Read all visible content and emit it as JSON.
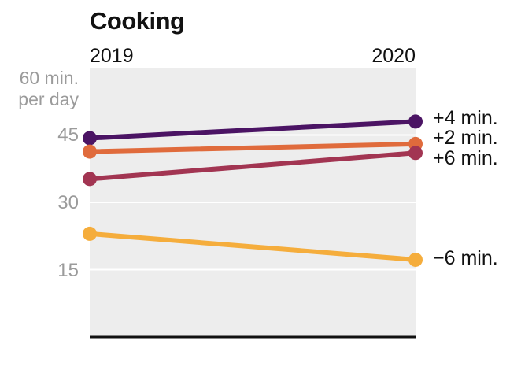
{
  "chart_data": {
    "type": "line",
    "title": "Cooking",
    "x": [
      "2019",
      "2020"
    ],
    "ylabel": [
      "60 min.",
      "per day"
    ],
    "yticks": [
      "45",
      "30",
      "15"
    ],
    "ylim": [
      0,
      60
    ],
    "grid": true,
    "series": [
      {
        "values": [
          44.3,
          48.0
        ],
        "color": "#4b1464",
        "delta_label": "+4 min."
      },
      {
        "values": [
          41.3,
          43.0
        ],
        "color": "#e06b3c",
        "delta_label": "+2 min."
      },
      {
        "values": [
          35.2,
          41.0
        ],
        "color": "#a23552",
        "delta_label": "+6 min."
      },
      {
        "values": [
          23.0,
          17.2
        ],
        "color": "#f5ad3c",
        "delta_label": "−6 min."
      }
    ]
  }
}
